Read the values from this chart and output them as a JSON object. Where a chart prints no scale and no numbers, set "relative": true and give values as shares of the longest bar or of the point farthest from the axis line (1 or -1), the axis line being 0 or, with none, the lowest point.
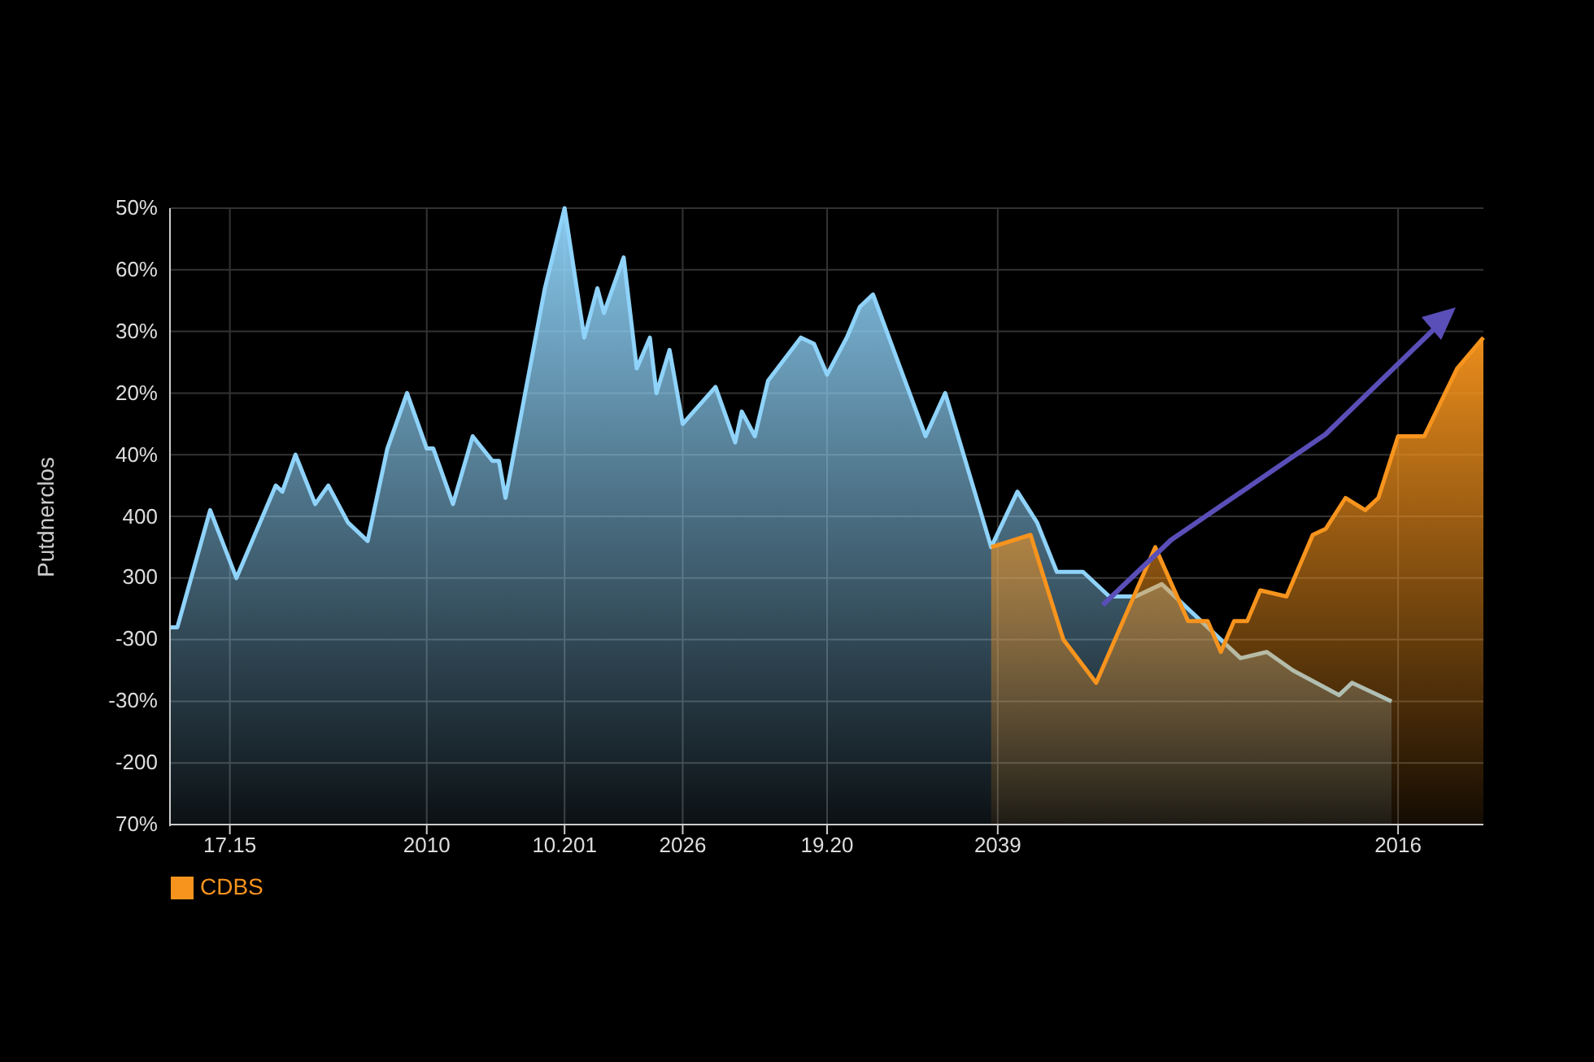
{
  "chart_data": {
    "type": "area",
    "relative": true,
    "ylabel": "Putdnerclos",
    "grid": true,
    "legend": "bottom left",
    "annotations": [
      "50%",
      "60%",
      "30%",
      "20%",
      "40%",
      "400",
      "300",
      "-300",
      "-30%",
      "-200",
      "70%"
    ],
    "categories": [
      null,
      null,
      null,
      null,
      null,
      null,
      null,
      null,
      null,
      "17.15",
      null,
      null,
      null,
      null,
      null,
      null,
      null,
      null,
      null,
      null,
      null,
      null,
      null,
      null,
      null,
      null,
      null,
      null,
      null,
      null,
      null,
      null,
      null,
      null,
      null,
      null,
      null,
      null,
      null,
      "2010",
      null,
      null,
      null,
      null,
      null,
      null,
      null,
      null,
      null,
      null,
      null,
      null,
      null,
      null,
      null,
      null,
      null,
      null,
      null,
      null,
      "10.201",
      null,
      null,
      null,
      null,
      null,
      null,
      null,
      null,
      null,
      null,
      null,
      null,
      null,
      null,
      null,
      null,
      null,
      "2026",
      null,
      null,
      null,
      null,
      null,
      null,
      null,
      null,
      null,
      null,
      null,
      null,
      null,
      null,
      null,
      null,
      null,
      null,
      null,
      null,
      null,
      "19.20",
      null,
      null,
      null,
      null,
      null,
      null,
      null,
      null,
      null,
      null,
      null,
      null,
      null,
      null,
      null,
      null,
      null,
      null,
      null,
      null,
      null,
      null,
      null,
      null,
      null,
      "2039",
      null,
      null,
      null,
      null,
      null,
      null,
      null,
      null,
      null,
      null,
      null,
      null,
      null,
      null,
      null,
      null,
      null,
      null,
      null,
      null,
      null,
      null,
      null,
      null,
      null,
      null,
      null,
      null,
      null,
      null,
      null,
      null,
      null,
      null,
      null,
      null,
      null,
      null,
      null,
      null,
      null,
      null,
      null,
      null,
      null,
      null,
      null,
      null,
      null,
      null,
      null,
      null,
      null,
      null,
      null,
      null,
      null,
      null,
      null,
      null,
      "2016",
      null,
      null,
      null,
      null,
      null,
      null,
      null,
      null,
      null,
      null,
      null,
      null,
      null
    ],
    "series": [
      {
        "color": "#8fd3fa",
        "values": [
          0.32,
          0.32,
          null,
          null,
          null,
          null,
          0.51,
          null,
          null,
          null,
          0.4,
          null,
          null,
          null,
          null,
          null,
          0.55,
          0.54,
          null,
          0.6,
          null,
          null,
          0.52,
          null,
          0.55,
          null,
          null,
          0.49,
          null,
          null,
          0.46,
          null,
          null,
          0.61,
          null,
          null,
          0.7,
          null,
          null,
          0.61,
          0.61,
          null,
          null,
          0.52,
          null,
          null,
          0.63,
          null,
          null,
          0.59,
          0.59,
          0.53,
          null,
          null,
          null,
          null,
          null,
          0.87,
          null,
          null,
          1,
          null,
          null,
          0.79,
          null,
          0.87,
          0.83,
          null,
          null,
          0.92,
          null,
          0.74,
          null,
          0.79,
          0.7,
          null,
          0.77,
          null,
          0.65,
          null,
          null,
          null,
          null,
          0.71,
          null,
          null,
          0.62,
          0.67,
          null,
          0.63,
          null,
          0.72,
          null,
          null,
          null,
          null,
          0.79,
          null,
          0.78,
          null,
          0.73,
          null,
          null,
          0.79,
          null,
          0.84,
          null,
          0.86,
          null,
          null,
          null,
          null,
          null,
          null,
          null,
          0.63,
          null,
          null,
          0.7,
          null,
          null,
          null,
          null,
          null,
          null,
          0.45,
          null,
          null,
          null,
          0.54,
          null,
          null,
          0.49,
          null,
          null,
          0.41,
          null,
          null,
          null,
          0.41,
          null,
          null,
          null,
          0.37,
          null,
          null,
          null,
          0.37,
          null,
          null,
          null,
          0.39,
          null,
          null,
          null,
          null,
          null,
          null,
          null,
          null,
          null,
          null,
          null,
          0.27,
          null,
          null,
          null,
          0.28,
          null,
          null,
          null,
          0.25,
          null,
          null,
          null,
          null,
          null,
          null,
          0.21,
          null,
          0.23,
          null,
          null,
          null,
          null,
          null,
          0.2,
          null,
          null,
          null,
          null,
          null,
          null,
          null,
          null,
          null,
          null,
          null,
          null,
          null,
          null
        ]
      },
      {
        "name": "CDBS",
        "color": "#f7941d",
        "values": [
          null,
          null,
          null,
          null,
          null,
          null,
          null,
          null,
          null,
          null,
          null,
          null,
          null,
          null,
          null,
          null,
          null,
          null,
          null,
          null,
          null,
          null,
          null,
          null,
          null,
          null,
          null,
          null,
          null,
          null,
          null,
          null,
          null,
          null,
          null,
          null,
          null,
          null,
          null,
          null,
          null,
          null,
          null,
          null,
          null,
          null,
          null,
          null,
          null,
          null,
          null,
          null,
          null,
          null,
          null,
          null,
          null,
          null,
          null,
          null,
          null,
          null,
          null,
          null,
          null,
          null,
          null,
          null,
          null,
          null,
          null,
          null,
          null,
          null,
          null,
          null,
          null,
          null,
          null,
          null,
          null,
          null,
          null,
          null,
          null,
          null,
          null,
          null,
          null,
          null,
          null,
          null,
          null,
          null,
          null,
          null,
          null,
          null,
          null,
          null,
          null,
          null,
          null,
          null,
          null,
          null,
          null,
          null,
          null,
          null,
          null,
          null,
          null,
          null,
          null,
          null,
          null,
          null,
          null,
          null,
          null,
          null,
          null,
          null,
          null,
          0.45,
          null,
          null,
          null,
          null,
          null,
          0.47,
          null,
          null,
          null,
          null,
          0.3,
          null,
          null,
          null,
          null,
          0.23,
          null,
          null,
          null,
          null,
          null,
          null,
          null,
          null,
          0.45,
          null,
          null,
          null,
          null,
          0.33,
          null,
          null,
          0.33,
          null,
          0.28,
          null,
          0.33,
          null,
          0.33,
          null,
          0.38,
          null,
          null,
          null,
          0.37,
          null,
          null,
          null,
          0.47,
          null,
          0.48,
          null,
          null,
          0.53,
          null,
          null,
          0.51,
          null,
          0.53,
          null,
          null,
          0.63,
          null,
          null,
          0.63,
          0.63,
          null,
          null,
          null,
          null,
          0.74,
          null,
          null,
          null,
          0.79
        ]
      }
    ]
  }
}
